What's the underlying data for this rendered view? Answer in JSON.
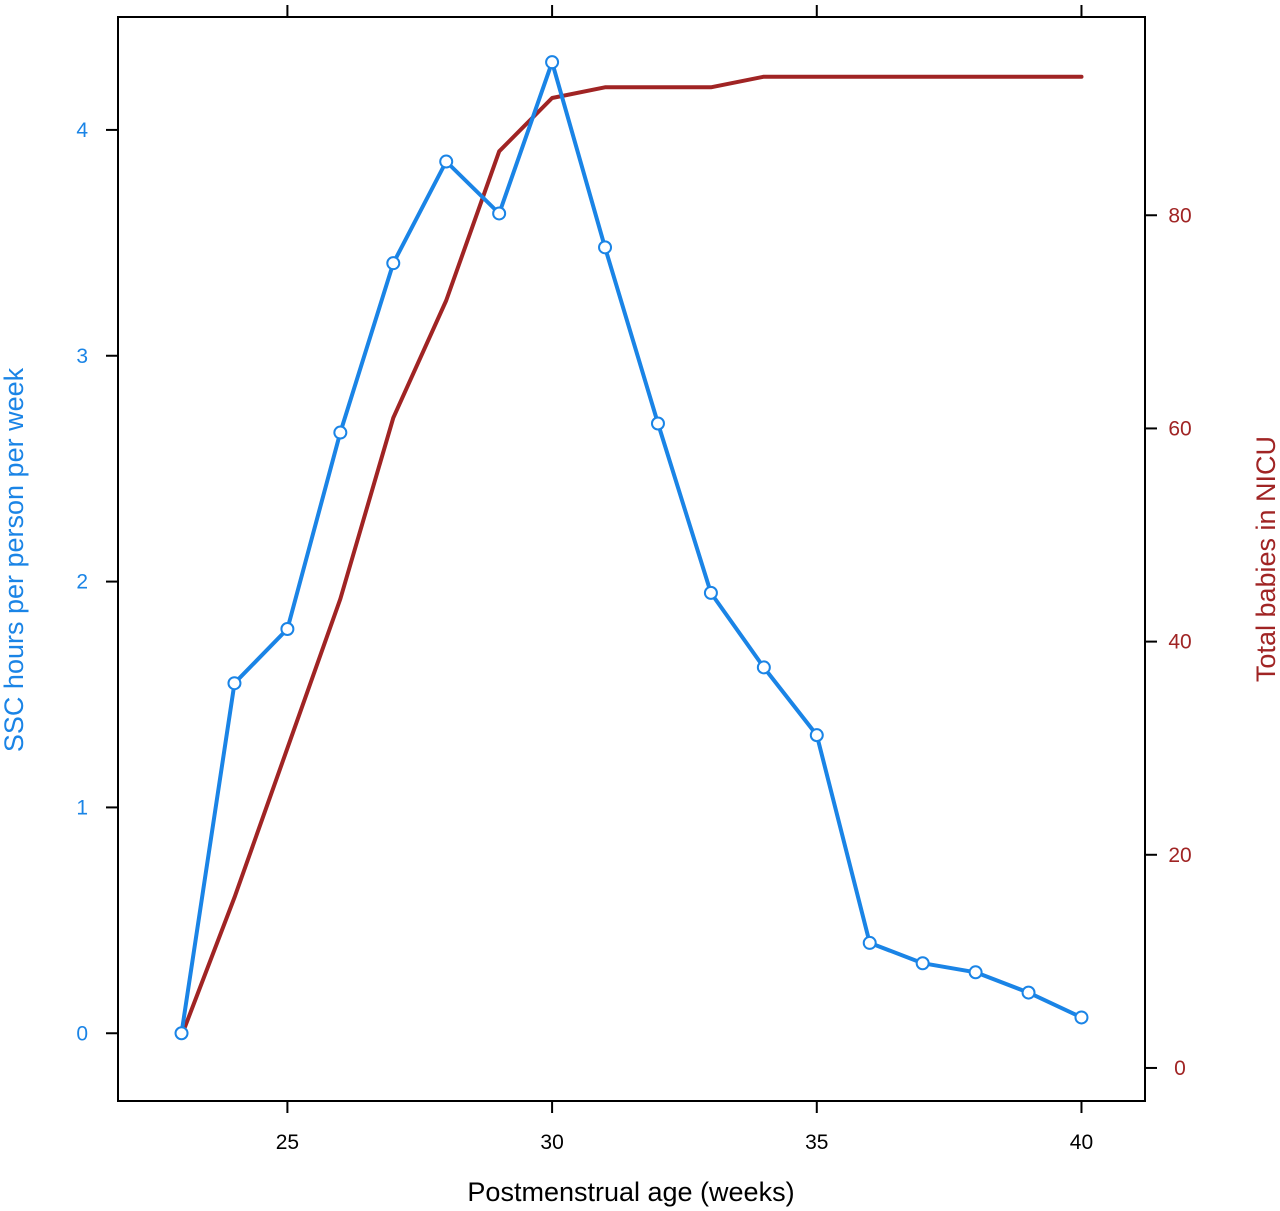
{
  "chart_data": {
    "type": "line",
    "xlabel": "Postmenstrual age (weeks)",
    "ylabel_left": "SSC hours per person per week",
    "ylabel_right": "Total babies in NICU",
    "x_ticks": [
      25,
      30,
      35,
      40
    ],
    "y_left_ticks": [
      0,
      1,
      2,
      3,
      4
    ],
    "y_right_ticks": [
      0,
      20,
      40,
      60,
      80
    ],
    "xlim": [
      21.8,
      41.2
    ],
    "ylim_left": [
      -0.3,
      4.5
    ],
    "ylim_right": [
      -3.1,
      98.6
    ],
    "grid": false,
    "series": [
      {
        "axis": "left",
        "color": "#1a84e6",
        "markers": "open-circle",
        "x": [
          23,
          24,
          25,
          26,
          27,
          28,
          29,
          30,
          31,
          32,
          33,
          34,
          35,
          36,
          37,
          38,
          39,
          40
        ],
        "values": [
          0.0,
          1.55,
          1.79,
          2.66,
          3.41,
          3.86,
          3.63,
          4.3,
          3.48,
          2.7,
          1.95,
          1.62,
          1.32,
          0.4,
          0.31,
          0.27,
          0.18,
          0.07
        ]
      },
      {
        "axis": "right",
        "color": "#a02424",
        "markers": "none",
        "x": [
          23,
          24,
          25,
          26,
          27,
          28,
          29,
          30,
          31,
          32,
          33,
          34,
          35,
          36,
          37,
          38,
          39,
          40
        ],
        "values": [
          3,
          16,
          30,
          44,
          61,
          72,
          86,
          91,
          92,
          92,
          92,
          93,
          93,
          93,
          93,
          93,
          93,
          93
        ]
      }
    ]
  }
}
